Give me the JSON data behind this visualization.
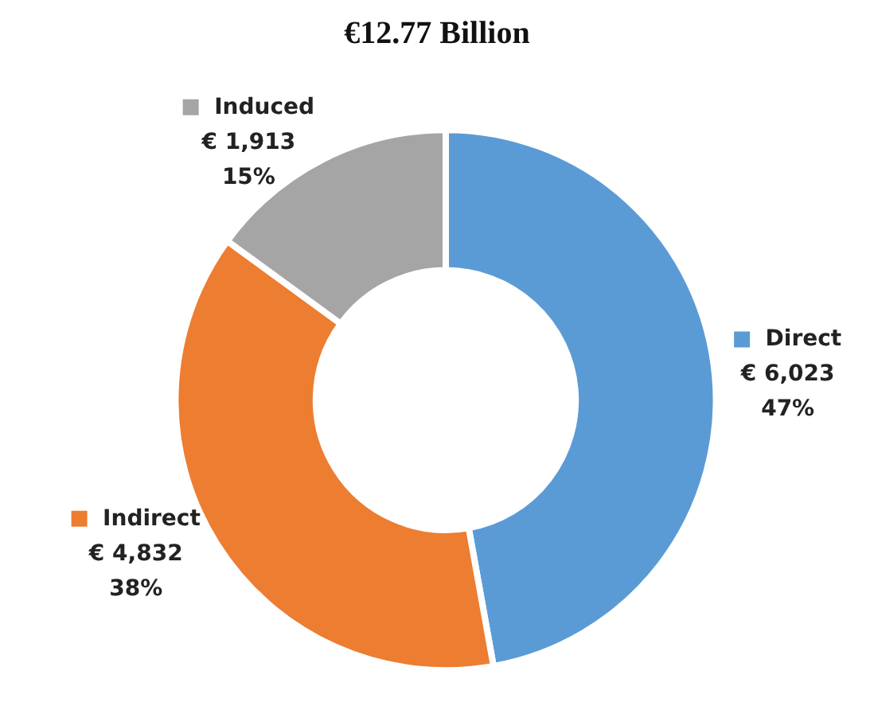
{
  "chart_data": {
    "type": "donut",
    "title": "€12.77 Billion",
    "categories": [
      "Direct",
      "Indirect",
      "Induced"
    ],
    "values": [
      6023,
      4832,
      1913
    ],
    "colors": [
      "#5b9bd5",
      "#ed7d31",
      "#a5a5a5"
    ],
    "value_labels": [
      "€ 6,023\n47%",
      "€ 4,832\n38%",
      "€ 1,913\n15%"
    ],
    "legend": "left"
  }
}
